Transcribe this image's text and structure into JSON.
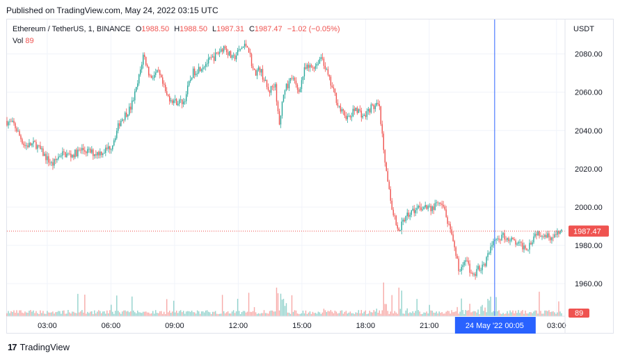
{
  "header": {
    "published": "Published on TradingView.com, May 24, 2022 03:15 UTC"
  },
  "legend": {
    "symbol": "Ethereum / TetherUS, 1, BINANCE",
    "open_label": "O",
    "open": "1988.50",
    "high_label": "H",
    "high": "1988.50",
    "low_label": "L",
    "low": "1987.31",
    "close_label": "C",
    "close": "1987.47",
    "change": "−1.02 (−0.05%)",
    "vol_label": "Vol",
    "vol": "89"
  },
  "axis": {
    "currency": "USDT"
  },
  "footer": {
    "brand": "TradingView",
    "logo": "17"
  },
  "colors": {
    "up": "#26a69a",
    "down": "#ef5350",
    "crosshair": "#2962ff",
    "last_price": "#ef5350"
  },
  "chart_data": {
    "type": "candlestick",
    "interval": "1 minute",
    "y_ticks": [
      "1960.00",
      "1980.00",
      "2000.00",
      "2020.00",
      "2040.00",
      "2060.00",
      "2080.00"
    ],
    "y_tick_values": [
      1960,
      1980,
      2000,
      2020,
      2040,
      2060,
      2080
    ],
    "ylim": [
      1943,
      2098
    ],
    "x_ticks": [
      "03:00",
      "06:00",
      "09:00",
      "12:00",
      "15:00",
      "18:00",
      "21:00",
      "03:00"
    ],
    "x_tick_hours": [
      3,
      6,
      9,
      12,
      15,
      18,
      21,
      27
    ],
    "xlim_hours": [
      1.1,
      27.4
    ],
    "crosshair": {
      "label": "24 May '22   00:05",
      "hour": 24.083
    },
    "last_price": {
      "label": "1987.47",
      "value": 1987.47
    },
    "last_volume": {
      "label": "89"
    },
    "price_path": [
      [
        1.1,
        2045
      ],
      [
        1.5,
        2043
      ],
      [
        2.0,
        2032
      ],
      [
        2.5,
        2033
      ],
      [
        3.0,
        2026
      ],
      [
        3.3,
        2022
      ],
      [
        3.7,
        2028
      ],
      [
        4.2,
        2027
      ],
      [
        4.7,
        2030
      ],
      [
        5.3,
        2028
      ],
      [
        5.7,
        2029
      ],
      [
        6.1,
        2032
      ],
      [
        6.5,
        2045
      ],
      [
        7.0,
        2052
      ],
      [
        7.3,
        2063
      ],
      [
        7.6,
        2080
      ],
      [
        7.9,
        2068
      ],
      [
        8.3,
        2070
      ],
      [
        8.7,
        2058
      ],
      [
        9.1,
        2055
      ],
      [
        9.5,
        2055
      ],
      [
        9.9,
        2070
      ],
      [
        10.4,
        2074
      ],
      [
        10.9,
        2078
      ],
      [
        11.4,
        2084
      ],
      [
        11.8,
        2077
      ],
      [
        12.2,
        2083
      ],
      [
        12.5,
        2085
      ],
      [
        12.8,
        2070
      ],
      [
        13.1,
        2072
      ],
      [
        13.5,
        2060
      ],
      [
        13.8,
        2065
      ],
      [
        14.0,
        2042
      ],
      [
        14.2,
        2060
      ],
      [
        14.6,
        2068
      ],
      [
        14.9,
        2060
      ],
      [
        15.2,
        2072
      ],
      [
        15.7,
        2074
      ],
      [
        16.0,
        2079
      ],
      [
        16.3,
        2068
      ],
      [
        16.6,
        2059
      ],
      [
        16.9,
        2050
      ],
      [
        17.3,
        2046
      ],
      [
        17.6,
        2052
      ],
      [
        18.0,
        2047
      ],
      [
        18.3,
        2052
      ],
      [
        18.7,
        2053
      ],
      [
        19.0,
        2020
      ],
      [
        19.3,
        2000
      ],
      [
        19.6,
        1988
      ],
      [
        20.0,
        1995
      ],
      [
        20.3,
        1998
      ],
      [
        20.8,
        2000
      ],
      [
        21.2,
        1999
      ],
      [
        21.5,
        2002
      ],
      [
        21.8,
        1998
      ],
      [
        22.1,
        1985
      ],
      [
        22.5,
        1966
      ],
      [
        22.8,
        1973
      ],
      [
        23.1,
        1963
      ],
      [
        23.4,
        1968
      ],
      [
        23.7,
        1971
      ],
      [
        24.1,
        1982
      ],
      [
        24.5,
        1985
      ],
      [
        24.9,
        1983
      ],
      [
        25.3,
        1980
      ],
      [
        25.7,
        1979
      ],
      [
        26.1,
        1987
      ],
      [
        26.5,
        1986
      ],
      [
        26.9,
        1984
      ],
      [
        27.3,
        1987.5
      ]
    ]
  }
}
